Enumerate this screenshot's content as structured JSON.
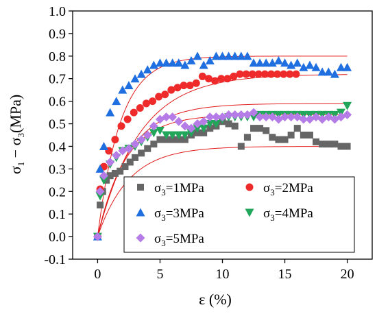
{
  "chart_data": {
    "type": "scatter",
    "xlabel": "ε (%)",
    "ylabel_parts": [
      "σ",
      "1",
      " − σ",
      "3",
      "(MPa)"
    ],
    "xlim": [
      -2,
      22
    ],
    "ylim": [
      -0.1,
      1.0
    ],
    "xticks": [
      0,
      5,
      10,
      15,
      20
    ],
    "yticks": [
      -0.1,
      0.0,
      0.1,
      0.2,
      0.3,
      0.4,
      0.5,
      0.6,
      0.7,
      0.8,
      0.9,
      1.0
    ],
    "ytick_labels": [
      "-0.1",
      "0.0",
      "0.1",
      "0.2",
      "0.3",
      "0.4",
      "0.5",
      "0.6",
      "0.7",
      "0.8",
      "0.9",
      "1.0"
    ],
    "grid": false,
    "legend_position": "bottom-right",
    "series": [
      {
        "name_prefix": "σ",
        "name_sub": "3",
        "name_suffix": "=1MPa",
        "marker": "square",
        "color": "#666666",
        "x": [
          0,
          0.2,
          0.4,
          0.7,
          1.0,
          1.4,
          1.8,
          2.2,
          2.6,
          3.0,
          3.5,
          4.0,
          4.5,
          5.0,
          5.5,
          6.0,
          6.5,
          7.0,
          7.5,
          8.0,
          8.5,
          9.0,
          9.5,
          10.0,
          10.5,
          11.0,
          11.5,
          12.0,
          12.5,
          13.0,
          13.5,
          14.0,
          14.5,
          15.0,
          15.5,
          16.0,
          16.5,
          17.0,
          17.5,
          18.0,
          18.5,
          19.0,
          19.5,
          20.0
        ],
        "y": [
          0.0,
          0.14,
          0.2,
          0.25,
          0.27,
          0.28,
          0.29,
          0.31,
          0.33,
          0.35,
          0.37,
          0.39,
          0.41,
          0.43,
          0.43,
          0.43,
          0.43,
          0.43,
          0.45,
          0.46,
          0.46,
          0.48,
          0.49,
          0.51,
          0.5,
          0.49,
          0.4,
          0.44,
          0.48,
          0.48,
          0.47,
          0.44,
          0.43,
          0.43,
          0.45,
          0.48,
          0.45,
          0.45,
          0.42,
          0.41,
          0.41,
          0.41,
          0.4,
          0.4
        ]
      },
      {
        "name_prefix": "σ",
        "name_sub": "3",
        "name_suffix": "=2MPa",
        "marker": "circle",
        "color": "#ee2a2a",
        "x": [
          0,
          0.2,
          0.5,
          0.9,
          1.4,
          1.9,
          2.4,
          2.9,
          3.4,
          3.9,
          4.4,
          4.9,
          5.4,
          5.9,
          6.4,
          6.9,
          7.4,
          7.9,
          8.4,
          8.9,
          9.4,
          9.9,
          10.4,
          10.9,
          11.4,
          11.9,
          12.4,
          12.9,
          13.4,
          13.9,
          14.4,
          14.9,
          15.4,
          15.9
        ],
        "y": [
          0.0,
          0.21,
          0.31,
          0.38,
          0.43,
          0.49,
          0.52,
          0.55,
          0.57,
          0.59,
          0.6,
          0.62,
          0.63,
          0.65,
          0.66,
          0.67,
          0.67,
          0.68,
          0.71,
          0.7,
          0.69,
          0.7,
          0.7,
          0.71,
          0.72,
          0.72,
          0.72,
          0.72,
          0.72,
          0.72,
          0.72,
          0.72,
          0.72,
          0.72
        ]
      },
      {
        "name_prefix": "σ",
        "name_sub": "3",
        "name_suffix": "=3MPa",
        "marker": "triangle-up",
        "color": "#1f6fe0",
        "x": [
          0,
          0.2,
          0.5,
          1.0,
          1.5,
          2.0,
          2.5,
          3.0,
          3.5,
          4.0,
          4.5,
          5.0,
          5.5,
          6.0,
          6.5,
          7.0,
          7.5,
          8.0,
          8.5,
          9.0,
          9.5,
          10.0,
          10.5,
          11.0,
          11.5,
          12.0,
          12.5,
          13.0,
          13.5,
          14.0,
          14.5,
          15.0,
          15.5,
          16.0,
          16.5,
          17.0,
          17.5,
          18.0,
          18.5,
          19.0,
          19.5,
          20.0
        ],
        "y": [
          0.0,
          0.3,
          0.4,
          0.55,
          0.6,
          0.65,
          0.67,
          0.7,
          0.72,
          0.74,
          0.76,
          0.77,
          0.77,
          0.77,
          0.77,
          0.76,
          0.78,
          0.8,
          0.76,
          0.78,
          0.8,
          0.8,
          0.8,
          0.8,
          0.8,
          0.8,
          0.77,
          0.77,
          0.77,
          0.77,
          0.78,
          0.77,
          0.76,
          0.77,
          0.75,
          0.76,
          0.75,
          0.73,
          0.73,
          0.72,
          0.75,
          0.75
        ]
      },
      {
        "name_prefix": "σ",
        "name_sub": "3",
        "name_suffix": "=4MPa",
        "marker": "triangle-down",
        "color": "#22a65a",
        "x": [
          0,
          0.2,
          0.5,
          1.0,
          1.5,
          2.0,
          2.5,
          3.0,
          3.5,
          4.0,
          4.5,
          5.0,
          5.5,
          6.0,
          6.5,
          7.0,
          7.5,
          8.0,
          8.5,
          9.0,
          9.5,
          10.0,
          10.5,
          11.0,
          11.5,
          12.0,
          12.5,
          13.0,
          13.5,
          14.0,
          14.5,
          15.0,
          15.5,
          16.0,
          16.5,
          17.0,
          17.5,
          18.0,
          18.5,
          19.0,
          19.5,
          20.0
        ],
        "y": [
          0.0,
          0.18,
          0.25,
          0.32,
          0.35,
          0.38,
          0.39,
          0.4,
          0.42,
          0.44,
          0.46,
          0.47,
          0.45,
          0.45,
          0.45,
          0.45,
          0.46,
          0.48,
          0.48,
          0.5,
          0.5,
          0.52,
          0.53,
          0.53,
          0.53,
          0.53,
          0.53,
          0.54,
          0.54,
          0.54,
          0.54,
          0.54,
          0.54,
          0.54,
          0.54,
          0.54,
          0.54,
          0.54,
          0.54,
          0.54,
          0.55,
          0.58
        ]
      },
      {
        "name_prefix": "σ",
        "name_sub": "3",
        "name_suffix": "=5MPa",
        "marker": "diamond",
        "color": "#b57be6",
        "x": [
          0,
          0.2,
          0.5,
          1.0,
          1.5,
          2.0,
          2.5,
          3.0,
          3.5,
          4.0,
          4.5,
          5.0,
          5.5,
          6.0,
          6.5,
          7.0,
          7.5,
          8.0,
          8.5,
          9.0,
          9.5,
          10.0,
          10.5,
          11.0,
          11.5,
          12.0,
          12.5,
          13.0,
          13.5,
          14.0,
          14.5,
          15.0,
          15.5,
          16.0,
          16.5,
          17.0,
          17.5,
          18.0,
          18.5,
          19.0,
          19.5,
          20.0
        ],
        "y": [
          0.0,
          0.2,
          0.27,
          0.33,
          0.36,
          0.38,
          0.39,
          0.41,
          0.43,
          0.45,
          0.49,
          0.52,
          0.53,
          0.53,
          0.51,
          0.49,
          0.48,
          0.5,
          0.51,
          0.53,
          0.53,
          0.53,
          0.54,
          0.54,
          0.54,
          0.54,
          0.55,
          0.53,
          0.53,
          0.53,
          0.52,
          0.53,
          0.53,
          0.53,
          0.52,
          0.52,
          0.53,
          0.52,
          0.53,
          0.52,
          0.53,
          0.54
        ]
      }
    ],
    "fit_curves": {
      "color": "#e11a1a",
      "x_end": 20,
      "asymptotes": [
        0.4,
        0.72,
        0.8,
        0.54,
        0.59
      ],
      "rates": [
        0.4,
        0.3,
        0.55,
        0.45,
        0.4
      ]
    }
  }
}
